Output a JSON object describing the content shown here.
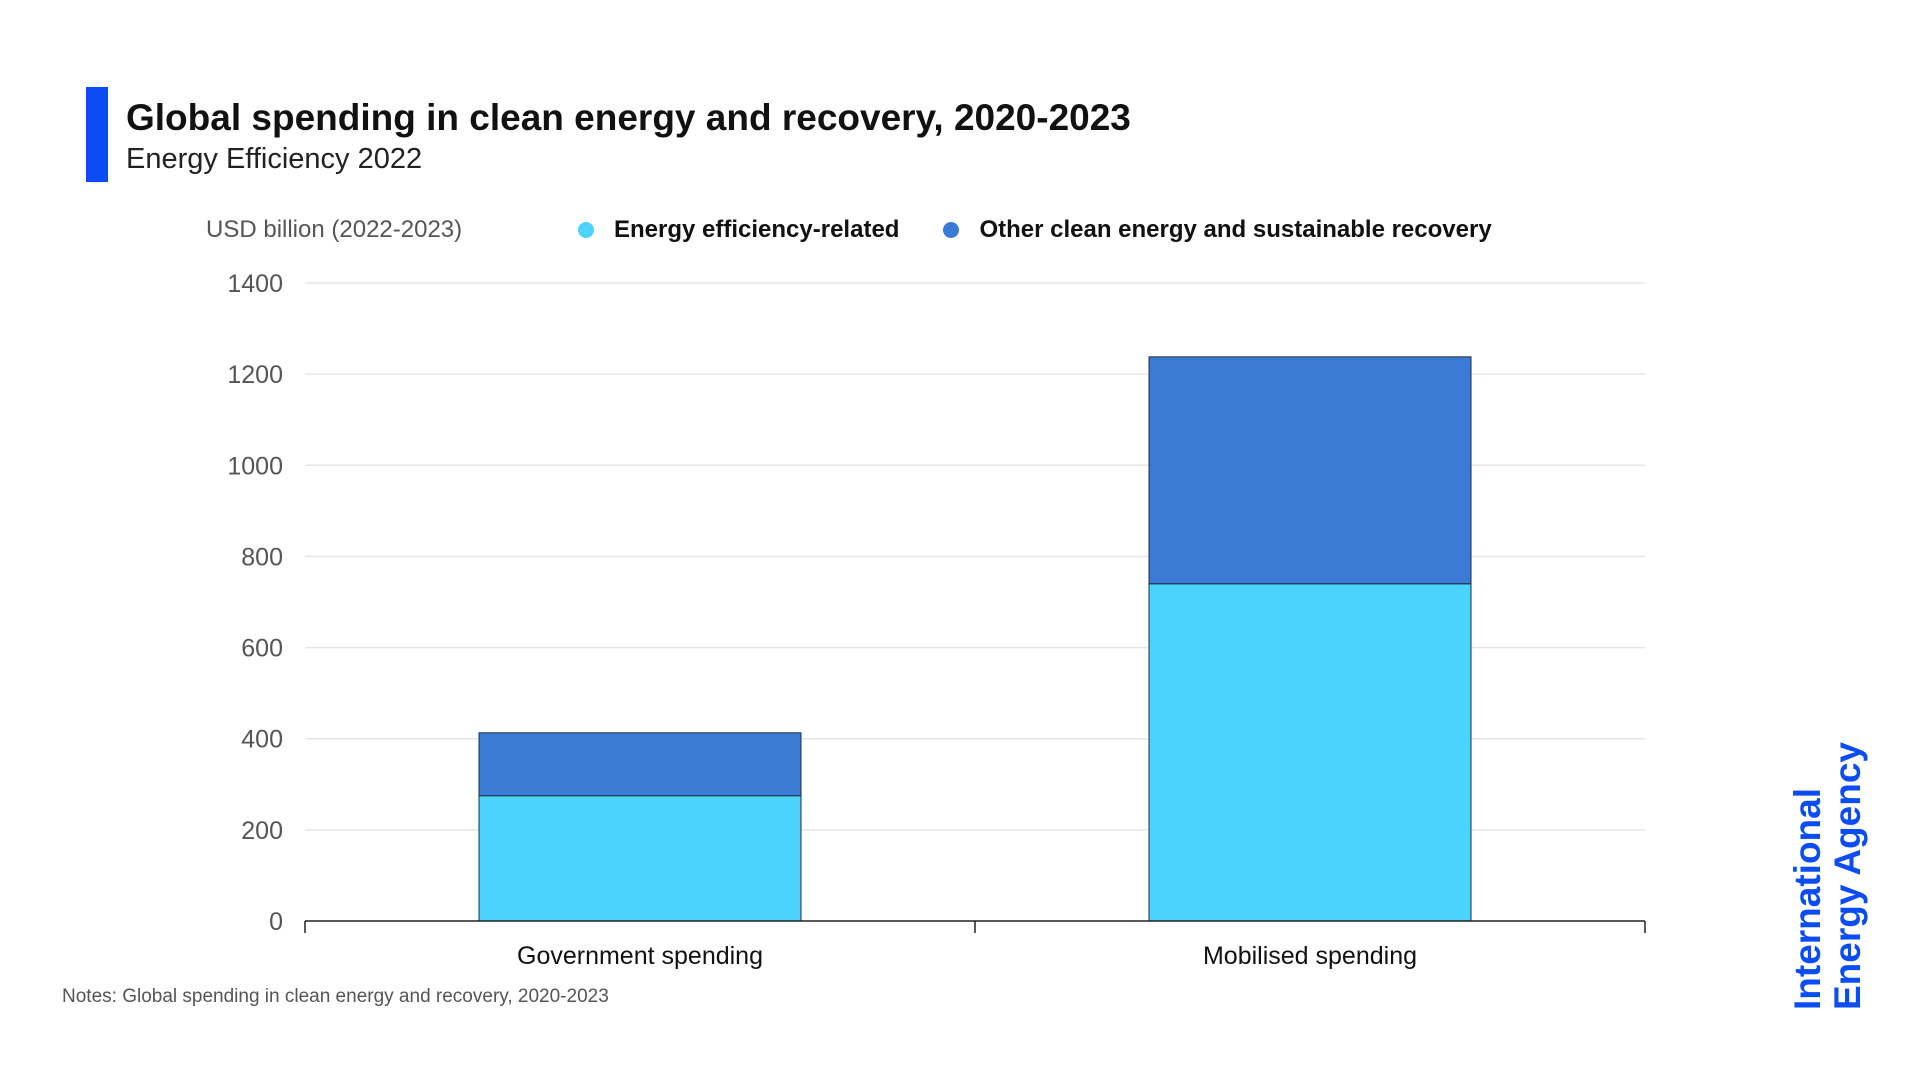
{
  "header": {
    "title": "Global spending in clean energy and recovery, 2020-2023",
    "subtitle": "Energy Efficiency 2022"
  },
  "colors": {
    "accent": "#0b4cf5",
    "energy_efficiency": "#4cd3fd",
    "other_clean": "#3c7bd5"
  },
  "legend": {
    "unit": "USD billion (2022-2023)",
    "items": [
      {
        "label": "Energy efficiency-related",
        "color": "#4cd3fd"
      },
      {
        "label": "Other clean energy and sustainable recovery",
        "color": "#3c7bd5"
      }
    ]
  },
  "notes": "Notes: Global spending in clean energy and recovery, 2020-2023",
  "logo": {
    "line1": "International",
    "line2": "Energy Agency"
  },
  "chart_data": {
    "type": "bar",
    "stacked": true,
    "title": "Global spending in clean energy and recovery, 2020-2023",
    "subtitle": "Energy Efficiency 2022",
    "ylabel": "USD billion (2022-2023)",
    "xlabel": "",
    "categories": [
      "Government spending",
      "Mobilised spending"
    ],
    "series": [
      {
        "name": "Energy efficiency-related",
        "values": [
          275,
          740
        ]
      },
      {
        "name": "Other clean energy and sustainable recovery",
        "values": [
          138,
          498
        ]
      }
    ],
    "ylim": [
      0,
      1400
    ],
    "yticks": [
      0,
      200,
      400,
      600,
      800,
      1000,
      1200,
      1400
    ],
    "grid": true,
    "legend_position": "top"
  }
}
